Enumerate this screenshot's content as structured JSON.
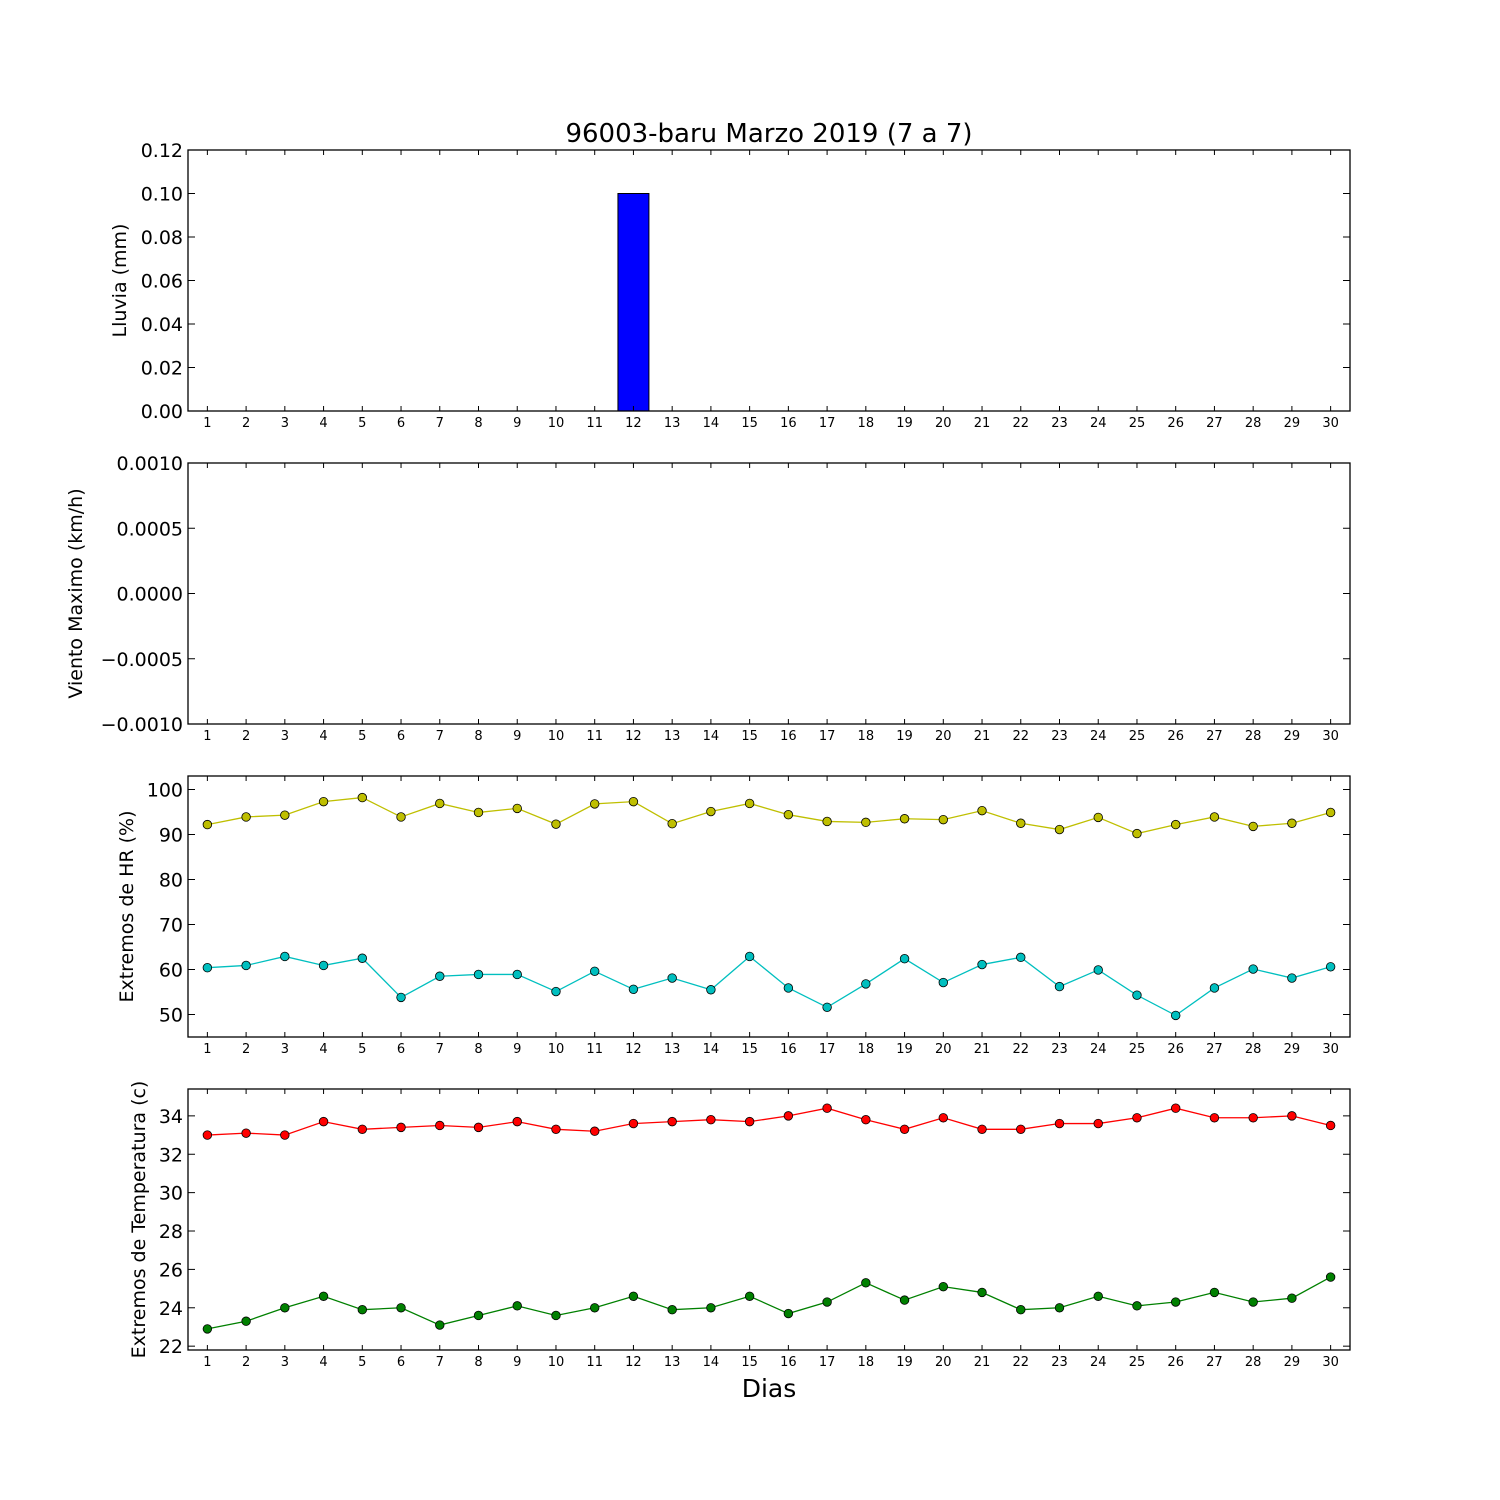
{
  "title": "96003-baru Marzo 2019  (7 a 7)",
  "xlabel": "Dias",
  "chart_data": [
    {
      "type": "bar",
      "ylabel": "Lluvia (mm)",
      "xlim": [
        0.5,
        30.5
      ],
      "ylim": [
        0,
        0.12
      ],
      "yticks": [
        "0.00",
        "0.02",
        "0.04",
        "0.06",
        "0.08",
        "0.10",
        "0.12"
      ],
      "x": [
        1,
        2,
        3,
        4,
        5,
        6,
        7,
        8,
        9,
        10,
        11,
        12,
        13,
        14,
        15,
        16,
        17,
        18,
        19,
        20,
        21,
        22,
        23,
        24,
        25,
        26,
        27,
        28,
        29,
        30
      ],
      "series": [
        {
          "color": "#0000ff",
          "values": [
            0,
            0,
            0,
            0,
            0,
            0,
            0,
            0,
            0,
            0,
            0,
            0.1,
            0,
            0,
            0,
            0,
            0,
            0,
            0,
            0,
            0,
            0,
            0,
            0,
            0,
            0,
            0,
            0,
            0,
            0
          ]
        }
      ]
    },
    {
      "type": "line",
      "ylabel": "Viento Maximo (km/h)",
      "xlim": [
        0.5,
        30.5
      ],
      "ylim": [
        -0.001,
        0.001
      ],
      "yticks": [
        "−0.0010",
        "−0.0005",
        "0.0000",
        "0.0005",
        "0.0010"
      ],
      "x": [
        1,
        2,
        3,
        4,
        5,
        6,
        7,
        8,
        9,
        10,
        11,
        12,
        13,
        14,
        15,
        16,
        17,
        18,
        19,
        20,
        21,
        22,
        23,
        24,
        25,
        26,
        27,
        28,
        29,
        30
      ],
      "series": []
    },
    {
      "type": "line",
      "ylabel": "Extremos de HR (%)",
      "xlim": [
        0.5,
        30.5
      ],
      "ylim": [
        45,
        103
      ],
      "yticks": [
        "50",
        "60",
        "70",
        "80",
        "90",
        "100"
      ],
      "x": [
        1,
        2,
        3,
        4,
        5,
        6,
        7,
        8,
        9,
        10,
        11,
        12,
        13,
        14,
        15,
        16,
        17,
        18,
        19,
        20,
        21,
        22,
        23,
        24,
        25,
        26,
        27,
        28,
        29,
        30
      ],
      "series": [
        {
          "color": "#bfbf00",
          "values": [
            92.2,
            93.9,
            94.3,
            97.3,
            98.2,
            93.9,
            96.9,
            94.9,
            95.8,
            92.3,
            96.8,
            97.3,
            92.4,
            95.1,
            96.9,
            94.4,
            92.9,
            92.7,
            93.5,
            93.3,
            95.3,
            92.5,
            91.1,
            93.8,
            90.2,
            92.2,
            93.9,
            91.8,
            92.5,
            94.9
          ]
        },
        {
          "color": "#00bfbf",
          "values": [
            60.4,
            60.9,
            62.9,
            60.9,
            62.5,
            53.8,
            58.5,
            58.9,
            58.9,
            55.1,
            59.6,
            55.6,
            58.1,
            55.5,
            62.9,
            55.9,
            51.6,
            56.8,
            62.4,
            57.1,
            61.1,
            62.7,
            56.2,
            59.9,
            54.3,
            49.8,
            55.9,
            60.1,
            58.1,
            60.6
          ]
        }
      ]
    },
    {
      "type": "line",
      "ylabel": "Extremos de Temperatura (c)",
      "xlim": [
        0.5,
        30.5
      ],
      "ylim": [
        21.8,
        35.4
      ],
      "yticks": [
        "22",
        "24",
        "26",
        "28",
        "30",
        "32",
        "34"
      ],
      "x": [
        1,
        2,
        3,
        4,
        5,
        6,
        7,
        8,
        9,
        10,
        11,
        12,
        13,
        14,
        15,
        16,
        17,
        18,
        19,
        20,
        21,
        22,
        23,
        24,
        25,
        26,
        27,
        28,
        29,
        30
      ],
      "series": [
        {
          "color": "#ff0000",
          "values": [
            33.0,
            33.1,
            33.0,
            33.7,
            33.3,
            33.4,
            33.5,
            33.4,
            33.7,
            33.3,
            33.2,
            33.6,
            33.7,
            33.8,
            33.7,
            34.0,
            34.4,
            33.8,
            33.3,
            33.9,
            33.3,
            33.3,
            33.6,
            33.6,
            33.9,
            34.4,
            33.9,
            33.9,
            34.0,
            33.5
          ]
        },
        {
          "color": "#008000",
          "values": [
            22.9,
            23.3,
            24.0,
            24.6,
            23.9,
            24.0,
            23.1,
            23.6,
            24.1,
            23.6,
            24.0,
            24.6,
            23.9,
            24.0,
            24.6,
            23.7,
            24.3,
            25.3,
            24.4,
            25.1,
            24.8,
            23.9,
            24.0,
            24.6,
            24.1,
            24.3,
            24.8,
            24.3,
            24.5,
            25.6
          ]
        }
      ]
    }
  ]
}
